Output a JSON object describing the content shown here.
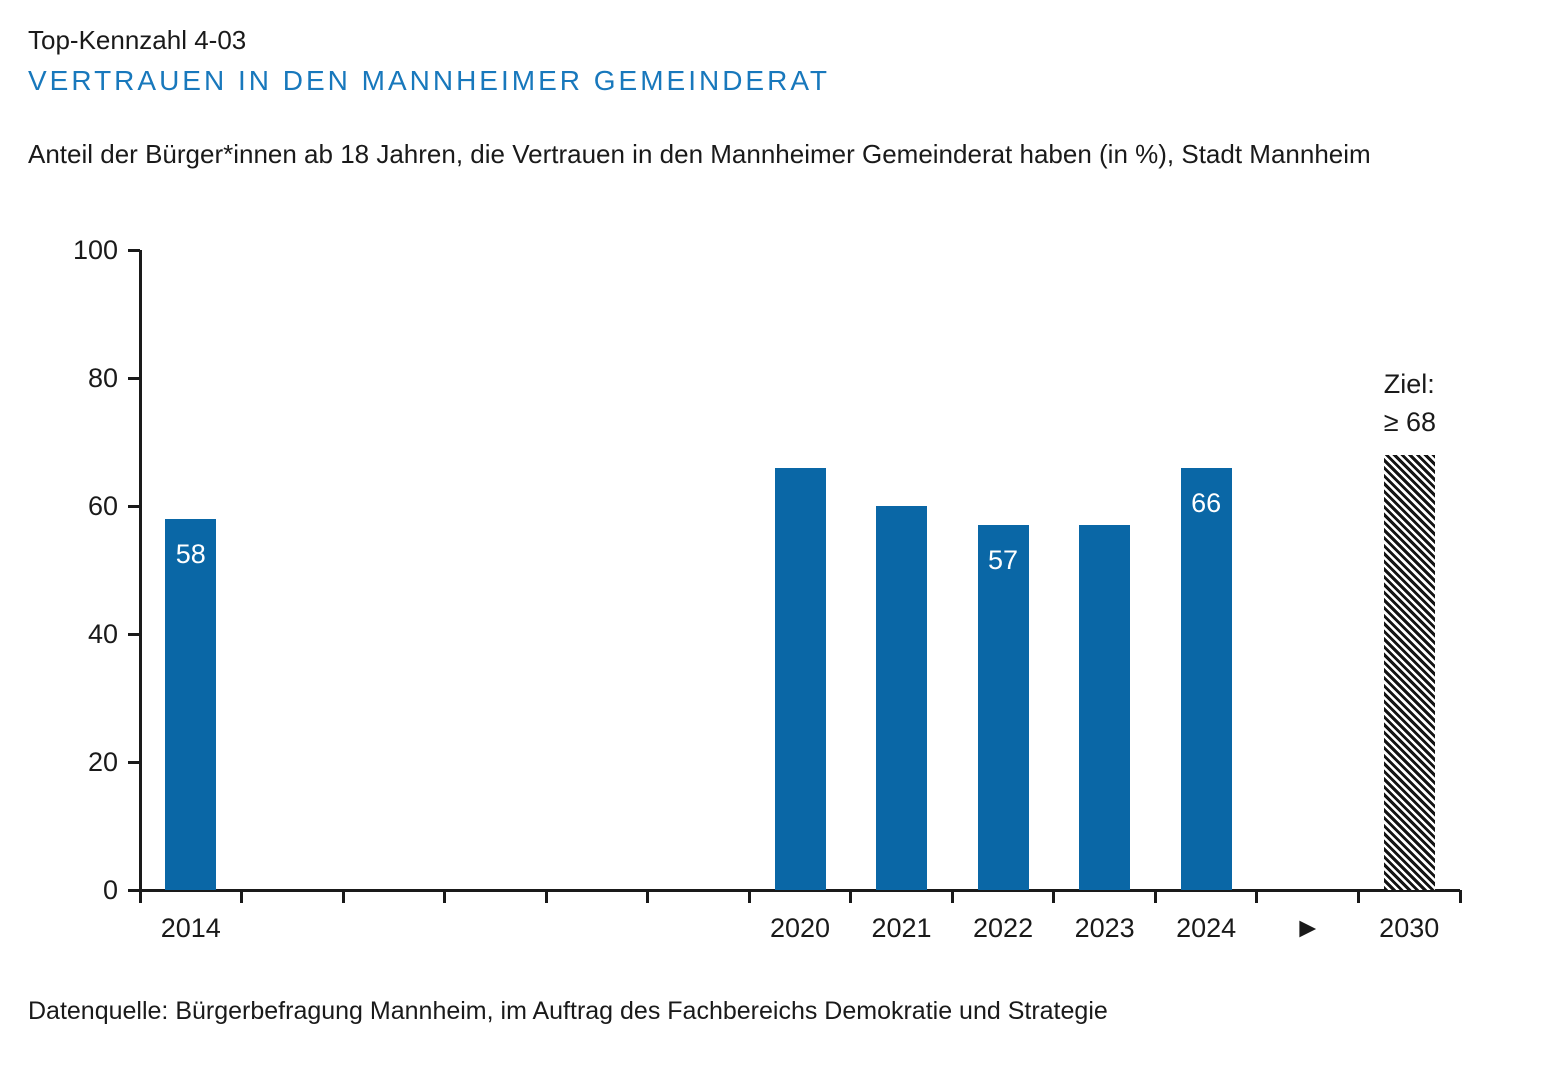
{
  "header": {
    "kicker": "Top-Kennzahl 4-03",
    "title": "VERTRAUEN IN DEN MANNHEIMER GEMEINDERAT",
    "subtitle": "Anteil der Bürger*innen ab 18 Jahren, die Vertrauen in den Mannheimer Gemeinderat haben (in %), Stadt Mannheim"
  },
  "footer": {
    "source": "Datenquelle: Bürgerbefragung Mannheim, im Auftrag des Fachbereichs Demokratie und Strategie"
  },
  "colors": {
    "bar": "#0a67a6",
    "title_blue": "#1878bc",
    "axis": "#1a1a1a",
    "bar_label_text": "#ffffff"
  },
  "chart_data": {
    "type": "bar",
    "title": "Vertrauen in den Mannheimer Gemeinderat",
    "xlabel": "",
    "ylabel": "",
    "unit": "%",
    "ylim": [
      0,
      100
    ],
    "yticks": [
      0,
      20,
      40,
      60,
      80,
      100
    ],
    "grid": false,
    "legend": false,
    "x_slots": [
      {
        "label": "2014",
        "value": 58,
        "bar_label": "58"
      },
      {
        "label": "",
        "value": null,
        "bar_label": ""
      },
      {
        "label": "",
        "value": null,
        "bar_label": ""
      },
      {
        "label": "",
        "value": null,
        "bar_label": ""
      },
      {
        "label": "",
        "value": null,
        "bar_label": ""
      },
      {
        "label": "",
        "value": null,
        "bar_label": ""
      },
      {
        "label": "2020",
        "value": 66,
        "bar_label": ""
      },
      {
        "label": "2021",
        "value": 60,
        "bar_label": ""
      },
      {
        "label": "2022",
        "value": 57,
        "bar_label": "57"
      },
      {
        "label": "2023",
        "value": 57,
        "bar_label": ""
      },
      {
        "label": "2024",
        "value": 66,
        "bar_label": "66"
      },
      {
        "label": "►",
        "value": null,
        "bar_label": "",
        "arrow": true
      },
      {
        "label": "2030",
        "value": 68,
        "bar_label": "",
        "hatched": true
      }
    ],
    "target": {
      "line1": "Ziel:",
      "line2": "≥ 68",
      "value": 68,
      "slot": "2030"
    }
  }
}
